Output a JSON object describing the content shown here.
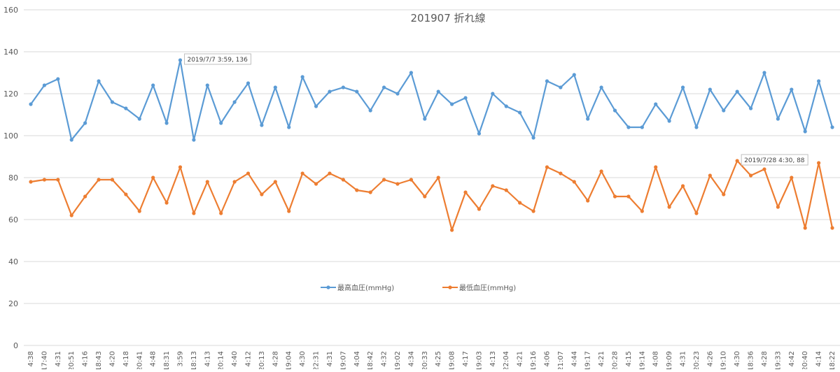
{
  "chart_data": {
    "type": "line",
    "title": "201907 折れ線",
    "ylim": [
      0,
      160
    ],
    "yticks": [
      0,
      20,
      40,
      60,
      80,
      100,
      120,
      140,
      160
    ],
    "grid": true,
    "legend_position": "bottom-center",
    "categories": [
      "4:38",
      "17:40",
      "4:31",
      "20:51",
      "4:16",
      "18:43",
      "4:20",
      "4:18",
      "20:41",
      "4:48",
      "18:31",
      "3:59",
      "18:13",
      "4:13",
      "20:14",
      "4:40",
      "4:12",
      "20:13",
      "4:28",
      "19:04",
      "4:30",
      "22:31",
      "4:31",
      "19:07",
      "4:04",
      "18:42",
      "4:32",
      "19:02",
      "4:34",
      "20:33",
      "4:25",
      "19:08",
      "4:17",
      "19:03",
      "4:13",
      "22:04",
      "4:21",
      "19:16",
      "4:06",
      "21:07",
      "4:44",
      "19:17",
      "4:21",
      "20:28",
      "4:15",
      "19:14",
      "4:08",
      "19:09",
      "4:31",
      "20:23",
      "4:26",
      "19:10",
      "4:30",
      "18:36",
      "4:28",
      "19:33",
      "4:42",
      "20:40",
      "4:14",
      "18:22"
    ],
    "series": [
      {
        "name": "最高血圧(mmHg)",
        "color": "#5B9BD5",
        "values": [
          115,
          124,
          127,
          98,
          106,
          126,
          116,
          113,
          108,
          124,
          106,
          136,
          98,
          124,
          106,
          116,
          125,
          105,
          123,
          104,
          128,
          114,
          121,
          123,
          121,
          112,
          123,
          120,
          130,
          108,
          121,
          115,
          118,
          101,
          120,
          114,
          111,
          99,
          126,
          123,
          129,
          108,
          123,
          112,
          104,
          104,
          115,
          107,
          123,
          104,
          122,
          112,
          121,
          113,
          130,
          108,
          122,
          102,
          126,
          104
        ]
      },
      {
        "name": "最低血圧(mmHg)",
        "color": "#ED7D31",
        "values": [
          78,
          79,
          79,
          62,
          71,
          79,
          79,
          72,
          64,
          80,
          68,
          85,
          63,
          78,
          63,
          78,
          82,
          72,
          78,
          64,
          82,
          77,
          82,
          79,
          74,
          73,
          79,
          77,
          79,
          71,
          80,
          55,
          73,
          65,
          76,
          74,
          68,
          64,
          85,
          82,
          78,
          69,
          83,
          71,
          71,
          64,
          85,
          66,
          76,
          63,
          81,
          72,
          88,
          81,
          84,
          66,
          80,
          56,
          87,
          56
        ]
      }
    ],
    "annotations": [
      {
        "text": "2019/7/7 3:59, 136",
        "series": 0,
        "index": 11
      },
      {
        "text": "2019/7/28 4:30, 88",
        "series": 1,
        "index": 52
      }
    ]
  }
}
